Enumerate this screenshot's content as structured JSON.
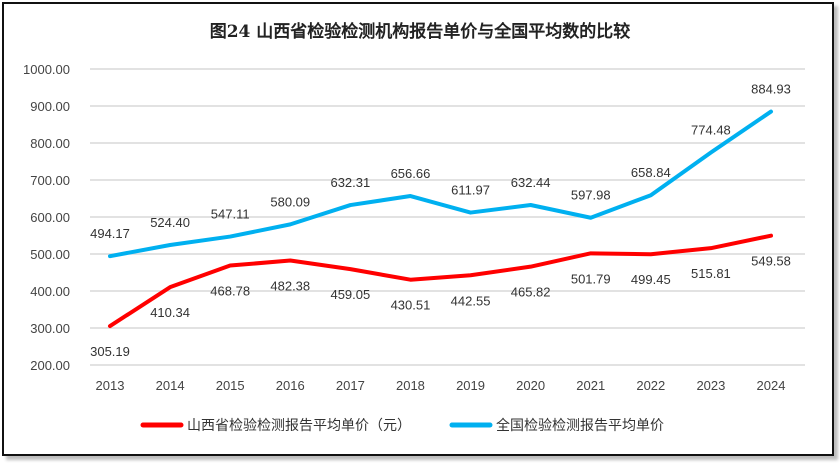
{
  "chart_data": {
    "type": "line",
    "title": "图24 山西省检验检测机构报告单价与全国平均数的比较",
    "xlabel": "",
    "ylabel": "",
    "x": [
      "2013",
      "2014",
      "2015",
      "2016",
      "2017",
      "2018",
      "2019",
      "2020",
      "2021",
      "2022",
      "2023",
      "2024"
    ],
    "ylim": [
      200,
      1000
    ],
    "yticks": [
      "200.00",
      "300.00",
      "400.00",
      "500.00",
      "600.00",
      "700.00",
      "800.00",
      "900.00",
      "1000.00"
    ],
    "grid": true,
    "legend_position": "bottom",
    "series": [
      {
        "name": "山西省检验检测报告平均单价（元）",
        "color": "#ff0000",
        "label_position": "below",
        "values": [
          305.19,
          410.34,
          468.78,
          482.38,
          459.05,
          430.51,
          442.55,
          465.82,
          501.79,
          499.45,
          515.81,
          549.58
        ],
        "labels": [
          "305.19",
          "410.34",
          "468.78",
          "482.38",
          "459.05",
          "430.51",
          "442.55",
          "465.82",
          "501.79",
          "499.45",
          "515.81",
          "549.58"
        ]
      },
      {
        "name": "全国检验检测报告平均单价",
        "color": "#00b0f0",
        "label_position": "above",
        "values": [
          494.17,
          524.4,
          547.11,
          580.09,
          632.31,
          656.66,
          611.97,
          632.44,
          597.98,
          658.84,
          774.48,
          884.93
        ],
        "labels": [
          "494.17",
          "524.40",
          "547.11",
          "580.09",
          "632.31",
          "656.66",
          "611.97",
          "632.44",
          "597.98",
          "658.84",
          "774.48",
          "884.93"
        ]
      }
    ]
  }
}
